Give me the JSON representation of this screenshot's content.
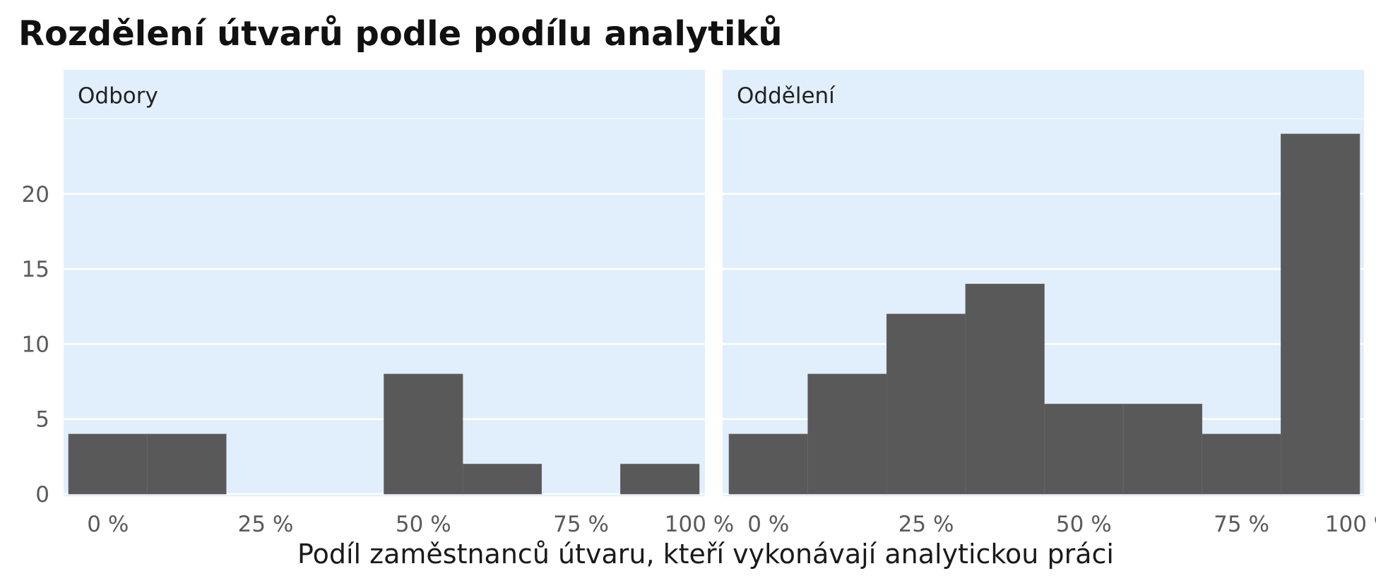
{
  "chart_data": {
    "type": "bar",
    "title": "Rozdělení útvarů podle podílu analytiků",
    "xlabel": "Podíl zaměstnanců útvaru, kteří vykonávají analytickou práci",
    "ylabel": "",
    "x_tick_labels": [
      "0 %",
      "25 %",
      "50 %",
      "75 %",
      "100 %"
    ],
    "y_tick_labels": [
      "0",
      "5",
      "10",
      "15",
      "20"
    ],
    "y_ticks": [
      0,
      5,
      10,
      15,
      20
    ],
    "ylim": [
      0,
      24.6
    ],
    "grid": true,
    "panel_background": "#e1effc",
    "bar_color": "#595959",
    "panels": [
      {
        "label": "Odbory",
        "bins": [
          {
            "from": -0.125,
            "to": 0.125,
            "count": 4
          },
          {
            "from": 0.125,
            "to": 0.375,
            "count": 4
          },
          {
            "from": 0.375,
            "to": 0.625,
            "count": 0
          },
          {
            "from": 0.625,
            "to": 0.875,
            "count": 0
          },
          {
            "from": 0.875,
            "to": 1.125,
            "count": 8
          },
          {
            "from": 1.125,
            "to": 1.375,
            "count": 2
          },
          {
            "from": 1.375,
            "to": 1.625,
            "count": 0
          },
          {
            "from": 1.625,
            "to": 1.875,
            "count": 2
          }
        ]
      },
      {
        "label": "Oddělení",
        "bins": [
          {
            "from": -0.125,
            "to": 0.125,
            "count": 4
          },
          {
            "from": 0.125,
            "to": 0.375,
            "count": 8
          },
          {
            "from": 0.375,
            "to": 0.625,
            "count": 12
          },
          {
            "from": 0.625,
            "to": 0.875,
            "count": 14
          },
          {
            "from": 0.875,
            "to": 1.125,
            "count": 6
          },
          {
            "from": 1.125,
            "to": 1.375,
            "count": 6
          },
          {
            "from": 1.375,
            "to": 1.625,
            "count": 4
          },
          {
            "from": 1.625,
            "to": 1.875,
            "count": 24
          }
        ]
      }
    ]
  }
}
